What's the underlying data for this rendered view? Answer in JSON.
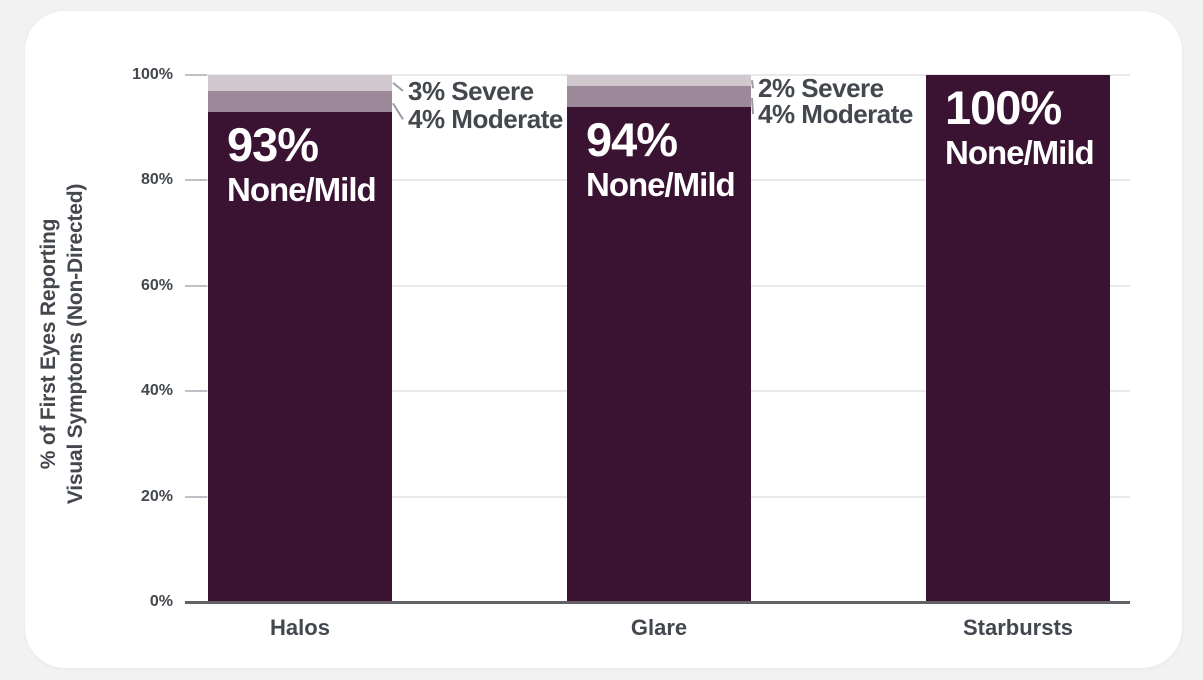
{
  "page": {
    "background_color": "#f2f2f3",
    "card_color": "#ffffff",
    "text_color": "#43474e",
    "gridline_color": "#e9e9eb",
    "axis_line_color": "#626267",
    "leader_line_color": "#9a9aa0"
  },
  "chart_data": {
    "type": "bar",
    "stacked": true,
    "title": "",
    "ylabel_lines": [
      "% of First Eyes Reporting",
      "Visual Symptoms (Non-Directed)"
    ],
    "categories": [
      "Halos",
      "Glare",
      "Starbursts"
    ],
    "series": [
      {
        "name": "None/Mild",
        "color": "#3a1232",
        "values": [
          93,
          94,
          100
        ]
      },
      {
        "name": "Moderate",
        "color": "#9c8899",
        "values": [
          4,
          4,
          0
        ]
      },
      {
        "name": "Severe",
        "color": "#d0c7cf",
        "values": [
          3,
          2,
          0
        ]
      }
    ],
    "y_ticks": [
      "0%",
      "20%",
      "40%",
      "60%",
      "80%",
      "100%"
    ],
    "ylim": [
      0,
      100
    ],
    "grid": true,
    "legend": "none",
    "bars": [
      {
        "category": "Halos",
        "value_label": "93%",
        "severity_label": "None/Mild",
        "annotations": [
          {
            "segment": "Severe",
            "text": "3% Severe"
          },
          {
            "segment": "Moderate",
            "text": "4% Moderate"
          }
        ]
      },
      {
        "category": "Glare",
        "value_label": "94%",
        "severity_label": "None/Mild",
        "annotations": [
          {
            "segment": "Severe",
            "text": "2% Severe"
          },
          {
            "segment": "Moderate",
            "text": "4% Moderate"
          }
        ]
      },
      {
        "category": "Starbursts",
        "value_label": "100%",
        "severity_label": "None/Mild",
        "annotations": []
      }
    ]
  }
}
